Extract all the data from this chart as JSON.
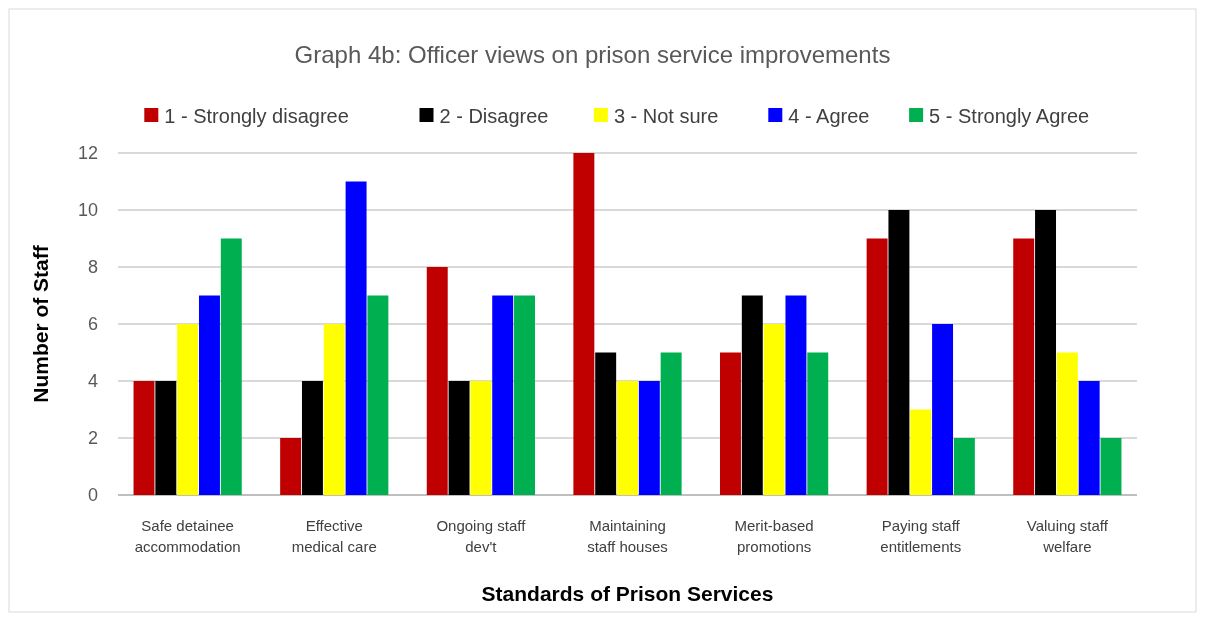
{
  "chart_data": {
    "type": "bar",
    "title": "Graph 4b: Officer views on prison service improvements",
    "xlabel": "Standards of Prison Services",
    "ylabel": "Number of Staff",
    "categories": [
      "Safe detainee accommodation",
      "Effective medical care",
      "Ongoing staff dev't",
      "Maintaining staff houses",
      "Merit-based promotions",
      "Paying staff entitlements",
      "Valuing staff welfare"
    ],
    "series": [
      {
        "name": "1 - Strongly disagree",
        "color": "#c00000",
        "values": [
          4,
          2,
          8,
          12,
          5,
          9,
          9
        ]
      },
      {
        "name": "2 - Disagree",
        "color": "#000000",
        "values": [
          4,
          4,
          4,
          5,
          7,
          10,
          10
        ]
      },
      {
        "name": "3 - Not sure",
        "color": "#ffff00",
        "values": [
          6,
          6,
          4,
          4,
          6,
          3,
          5
        ]
      },
      {
        "name": "4 - Agree",
        "color": "#0000ff",
        "values": [
          7,
          11,
          7,
          4,
          7,
          6,
          4
        ]
      },
      {
        "name": "5 - Strongly Agree",
        "color": "#00b050",
        "values": [
          9,
          7,
          7,
          5,
          5,
          2,
          2
        ]
      }
    ],
    "ylim": [
      0,
      12
    ],
    "yticks": [
      0,
      2,
      4,
      6,
      8,
      10,
      12
    ],
    "grid": "y",
    "legend": "top"
  }
}
